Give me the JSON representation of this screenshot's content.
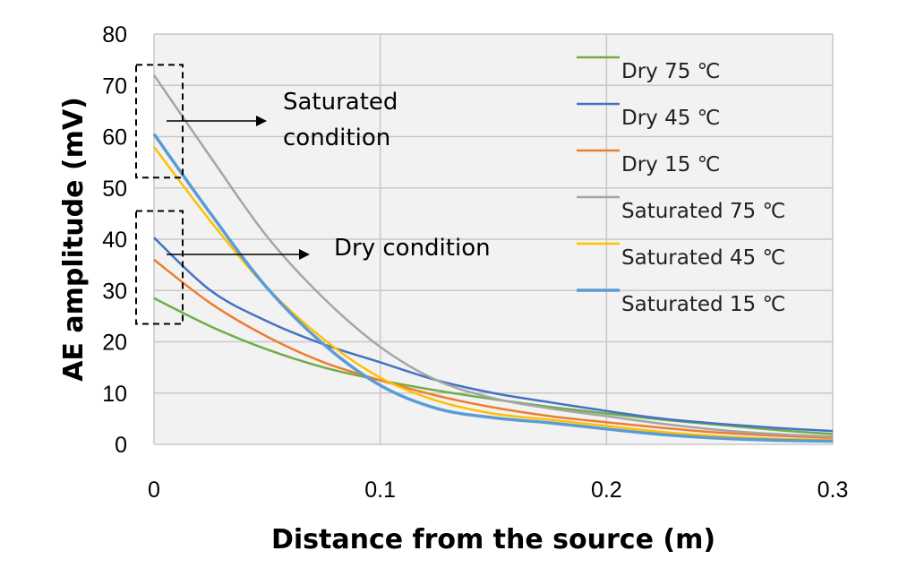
{
  "chart_data": {
    "type": "line",
    "title": "",
    "xlabel": "Distance from the source (m)",
    "ylabel": "AE amplitude (mV)",
    "xlim": [
      0,
      0.3
    ],
    "ylim": [
      0,
      80
    ],
    "xticks": [
      0,
      0.1,
      0.2,
      0.3
    ],
    "xtick_labels": [
      "0",
      "0.1",
      "0.2",
      "0.3"
    ],
    "yticks": [
      0,
      10,
      20,
      30,
      40,
      50,
      60,
      70,
      80
    ],
    "ytick_labels": [
      "0",
      "10",
      "20",
      "30",
      "40",
      "50",
      "60",
      "70",
      "80"
    ],
    "grid": true,
    "legend_position": "top-right",
    "x": [
      0,
      0.025,
      0.05,
      0.075,
      0.1,
      0.125,
      0.15,
      0.175,
      0.2,
      0.225,
      0.25,
      0.275,
      0.3
    ],
    "series": [
      {
        "name": "Dry 75 ℃",
        "color": "#70ad47",
        "values": [
          28.5,
          23.0,
          18.5,
          15.0,
          12.5,
          10.5,
          8.8,
          7.3,
          6.0,
          4.8,
          3.8,
          2.8,
          2.0
        ]
      },
      {
        "name": "Dry 45 ℃",
        "color": "#4472c4",
        "values": [
          40.3,
          30.0,
          24.0,
          19.5,
          16.0,
          12.5,
          10.0,
          8.2,
          6.5,
          5.0,
          4.0,
          3.2,
          2.6
        ]
      },
      {
        "name": "Dry 15 ℃",
        "color": "#ed7d31",
        "values": [
          36.0,
          27.5,
          21.0,
          16.0,
          12.5,
          9.5,
          7.2,
          5.5,
          4.3,
          3.2,
          2.3,
          1.7,
          1.3
        ]
      },
      {
        "name": "Saturated 75 ℃",
        "color": "#a5a5a5",
        "values": [
          72.0,
          56.0,
          40.5,
          28.5,
          19.0,
          12.5,
          9.0,
          7.0,
          5.5,
          4.0,
          2.8,
          2.0,
          1.5
        ]
      },
      {
        "name": "Saturated 45 ℃",
        "color": "#ffc000",
        "values": [
          58.0,
          43.5,
          30.5,
          20.5,
          13.0,
          8.5,
          6.0,
          4.8,
          3.6,
          2.4,
          1.6,
          1.1,
          0.9
        ]
      },
      {
        "name": "Saturated 15 ℃",
        "color": "#5b9bd5",
        "values": [
          60.5,
          45.0,
          30.5,
          19.5,
          11.5,
          7.0,
          5.2,
          4.2,
          3.0,
          1.9,
          1.2,
          0.8,
          0.6
        ]
      }
    ],
    "annotations": [
      {
        "text_lines": [
          "Saturated",
          "condition"
        ],
        "target_y_range": [
          52,
          74
        ]
      },
      {
        "text_lines": [
          "Dry condition"
        ],
        "target_y_range": [
          23.5,
          45.5
        ]
      }
    ]
  }
}
